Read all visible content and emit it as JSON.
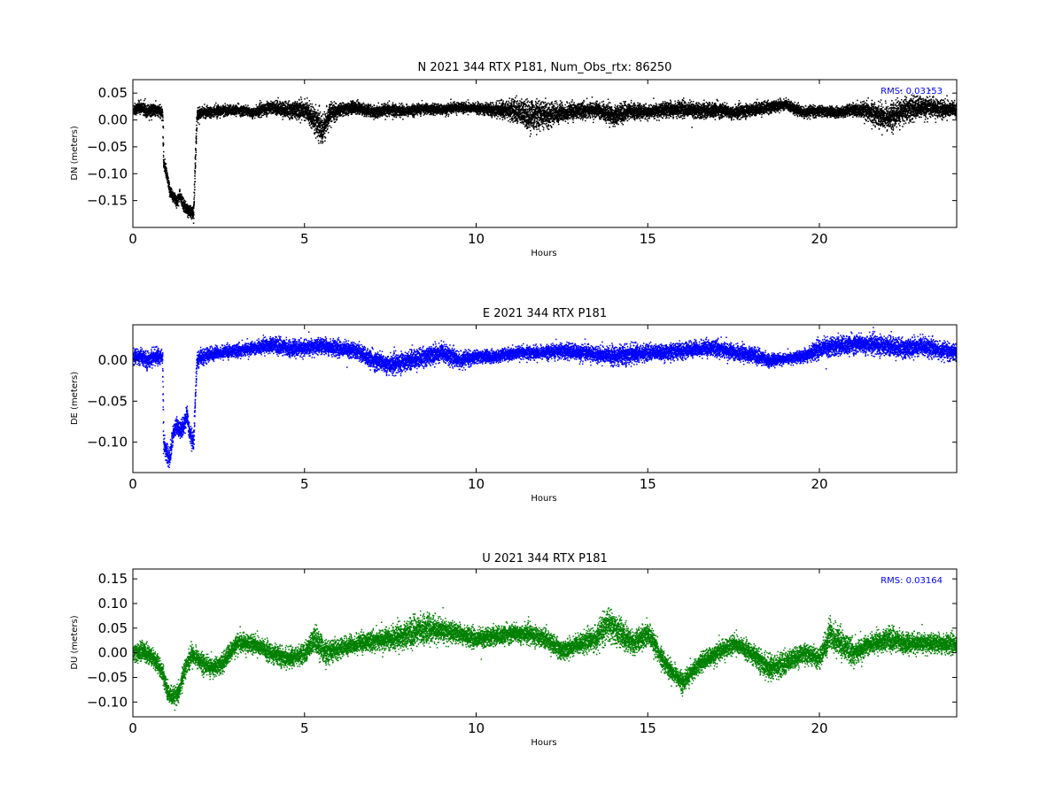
{
  "chart_data": [
    {
      "type": "scatter",
      "title": "N 2021 344 RTX  P181, Num_Obs_rtx: 86250",
      "xlabel": "Hours",
      "ylabel": "DN (meters)",
      "xlim": [
        0,
        24
      ],
      "ylim": [
        -0.2,
        0.075
      ],
      "xticks": [
        0,
        5,
        10,
        15,
        20
      ],
      "xtick_labels": [
        "0",
        "5",
        "10",
        "15",
        "20"
      ],
      "yticks": [
        -0.15,
        -0.1,
        -0.05,
        0.0,
        0.05
      ],
      "ytick_labels": [
        "−0.15",
        "−0.10",
        "−0.05",
        "0.00",
        "0.05"
      ],
      "grid": false,
      "color": "#000000",
      "annotation": "RMS:  0.03153",
      "annotation_color": "#0000ff",
      "series": [
        {
          "x": [
            0,
            0.2,
            0.4,
            0.6,
            0.85,
            0.88,
            0.95,
            1.05,
            1.15,
            1.25,
            1.35,
            1.45,
            1.55,
            1.65,
            1.75,
            1.85,
            2.0,
            2.5,
            3.0,
            3.5,
            4.0,
            4.5,
            5.0,
            5.3,
            5.5,
            5.7,
            6.0,
            6.5,
            7.0,
            7.5,
            8.0,
            8.5,
            9.0,
            9.5,
            10.0,
            10.5,
            11.0,
            11.5,
            12.0,
            12.5,
            13.0,
            13.5,
            14.0,
            14.5,
            15.0,
            15.5,
            16.0,
            16.5,
            17.0,
            17.5,
            18.0,
            18.5,
            19.0,
            19.5,
            20.0,
            20.5,
            21.0,
            21.5,
            22.0,
            22.5,
            23.0,
            23.5,
            24.0
          ],
          "y": [
            0.02,
            0.025,
            0.018,
            0.02,
            0.015,
            -0.08,
            -0.095,
            -0.13,
            -0.14,
            -0.15,
            -0.14,
            -0.155,
            -0.165,
            -0.17,
            -0.175,
            0.01,
            0.015,
            0.018,
            0.02,
            0.015,
            0.025,
            0.02,
            0.02,
            0.0,
            -0.02,
            0.01,
            0.02,
            0.025,
            0.015,
            0.02,
            0.018,
            0.022,
            0.02,
            0.025,
            0.022,
            0.02,
            0.02,
            0.01,
            0.01,
            0.015,
            0.018,
            0.02,
            0.01,
            0.018,
            0.015,
            0.02,
            0.022,
            0.018,
            0.02,
            0.015,
            0.02,
            0.025,
            0.03,
            0.015,
            0.018,
            0.015,
            0.02,
            0.015,
            0.005,
            0.02,
            0.025,
            0.022,
            0.02
          ],
          "spread": [
            0.012,
            0.012,
            0.012,
            0.012,
            0.012,
            0.012,
            0.012,
            0.012,
            0.012,
            0.012,
            0.012,
            0.012,
            0.012,
            0.012,
            0.012,
            0.012,
            0.01,
            0.01,
            0.01,
            0.01,
            0.012,
            0.015,
            0.02,
            0.025,
            0.03,
            0.02,
            0.012,
            0.012,
            0.012,
            0.012,
            0.01,
            0.01,
            0.01,
            0.01,
            0.01,
            0.012,
            0.02,
            0.03,
            0.025,
            0.018,
            0.015,
            0.015,
            0.02,
            0.015,
            0.012,
            0.015,
            0.015,
            0.015,
            0.015,
            0.012,
            0.012,
            0.012,
            0.01,
            0.01,
            0.01,
            0.01,
            0.012,
            0.02,
            0.025,
            0.025,
            0.02,
            0.018,
            0.015
          ]
        }
      ]
    },
    {
      "type": "scatter",
      "title": "E 2021 344 RTX  P181",
      "xlabel": "Hours",
      "ylabel": "DE (meters)",
      "xlim": [
        0,
        24
      ],
      "ylim": [
        -0.137,
        0.043
      ],
      "xticks": [
        0,
        5,
        10,
        15,
        20
      ],
      "xtick_labels": [
        "0",
        "5",
        "10",
        "15",
        "20"
      ],
      "yticks": [
        -0.1,
        -0.05,
        0.0
      ],
      "ytick_labels": [
        "−0.10",
        "−0.05",
        "0.00"
      ],
      "grid": false,
      "color": "#0000ff",
      "annotation": "",
      "annotation_color": "#0000ff",
      "series": [
        {
          "x": [
            0,
            0.2,
            0.4,
            0.6,
            0.85,
            0.88,
            0.95,
            1.05,
            1.15,
            1.25,
            1.35,
            1.45,
            1.55,
            1.65,
            1.75,
            1.85,
            2.0,
            2.5,
            3.0,
            3.5,
            4.0,
            4.5,
            5.0,
            5.5,
            6.0,
            6.5,
            7.0,
            7.5,
            8.0,
            8.5,
            9.0,
            9.5,
            10.0,
            10.5,
            11.0,
            11.5,
            12.0,
            12.5,
            13.0,
            13.5,
            14.0,
            14.5,
            15.0,
            15.5,
            16.0,
            16.5,
            17.0,
            17.5,
            18.0,
            18.5,
            19.0,
            19.5,
            20.0,
            20.5,
            21.0,
            21.5,
            22.0,
            22.5,
            23.0,
            23.5,
            24.0
          ],
          "y": [
            0.005,
            0.005,
            0.0,
            0.005,
            0.005,
            -0.1,
            -0.11,
            -0.12,
            -0.09,
            -0.08,
            -0.085,
            -0.08,
            -0.065,
            -0.09,
            -0.1,
            0.0,
            0.005,
            0.01,
            0.012,
            0.015,
            0.02,
            0.015,
            0.015,
            0.018,
            0.015,
            0.012,
            0.0,
            -0.005,
            0.0,
            0.005,
            0.01,
            0.0,
            0.005,
            0.005,
            0.008,
            0.01,
            0.01,
            0.012,
            0.01,
            0.008,
            0.005,
            0.008,
            0.01,
            0.01,
            0.012,
            0.015,
            0.015,
            0.01,
            0.008,
            0.0,
            0.002,
            0.005,
            0.015,
            0.018,
            0.02,
            0.02,
            0.018,
            0.015,
            0.018,
            0.012,
            0.01
          ],
          "spread": [
            0.01,
            0.01,
            0.01,
            0.01,
            0.01,
            0.012,
            0.012,
            0.012,
            0.012,
            0.012,
            0.012,
            0.012,
            0.012,
            0.012,
            0.012,
            0.01,
            0.01,
            0.008,
            0.008,
            0.008,
            0.01,
            0.01,
            0.01,
            0.01,
            0.01,
            0.01,
            0.012,
            0.012,
            0.012,
            0.012,
            0.012,
            0.01,
            0.008,
            0.008,
            0.008,
            0.008,
            0.008,
            0.01,
            0.01,
            0.01,
            0.012,
            0.012,
            0.01,
            0.01,
            0.01,
            0.01,
            0.01,
            0.01,
            0.01,
            0.008,
            0.006,
            0.008,
            0.012,
            0.012,
            0.012,
            0.012,
            0.012,
            0.012,
            0.012,
            0.01,
            0.01
          ]
        }
      ]
    },
    {
      "type": "scatter",
      "title": "U 2021 344 RTX  P181",
      "xlabel": "Hours",
      "ylabel": "DU (meters)",
      "xlim": [
        0,
        24
      ],
      "ylim": [
        -0.13,
        0.17
      ],
      "xticks": [
        0,
        5,
        10,
        15,
        20
      ],
      "xtick_labels": [
        "0",
        "5",
        "10",
        "15",
        "20"
      ],
      "yticks": [
        -0.1,
        -0.05,
        0.0,
        0.05,
        0.1,
        0.15
      ],
      "ytick_labels": [
        "−0.10",
        "−0.05",
        "0.00",
        "0.05",
        "0.10",
        "0.15"
      ],
      "grid": false,
      "color": "#008000",
      "annotation": "RMS:  0.03164",
      "annotation_color": "#0000ff",
      "series": [
        {
          "x": [
            0,
            0.3,
            0.6,
            0.85,
            1.0,
            1.15,
            1.3,
            1.5,
            1.7,
            2.0,
            2.3,
            2.6,
            3.0,
            3.5,
            4.0,
            4.5,
            5.0,
            5.3,
            5.6,
            6.0,
            6.5,
            7.0,
            7.5,
            8.0,
            8.5,
            9.0,
            9.5,
            10.0,
            10.5,
            11.0,
            11.5,
            12.0,
            12.5,
            13.0,
            13.5,
            13.8,
            14.2,
            14.6,
            15.0,
            15.3,
            15.6,
            16.0,
            16.5,
            17.0,
            17.5,
            18.0,
            18.5,
            19.0,
            19.5,
            20.0,
            20.3,
            20.6,
            21.0,
            21.5,
            22.0,
            22.5,
            23.0,
            23.5,
            24.0
          ],
          "y": [
            0.0,
            0.005,
            -0.01,
            -0.04,
            -0.08,
            -0.09,
            -0.085,
            -0.03,
            0.0,
            -0.02,
            -0.03,
            -0.02,
            0.02,
            0.02,
            0.0,
            -0.01,
            0.0,
            0.03,
            0.0,
            0.01,
            0.02,
            0.025,
            0.03,
            0.04,
            0.05,
            0.045,
            0.04,
            0.03,
            0.035,
            0.04,
            0.04,
            0.03,
            0.005,
            0.02,
            0.03,
            0.06,
            0.04,
            0.02,
            0.04,
            0.0,
            -0.03,
            -0.06,
            -0.02,
            0.0,
            0.02,
            0.0,
            -0.03,
            -0.02,
            0.0,
            -0.01,
            0.04,
            0.02,
            0.0,
            0.02,
            0.03,
            0.02,
            0.02,
            0.02,
            0.02
          ],
          "spread": [
            0.02,
            0.02,
            0.02,
            0.02,
            0.02,
            0.02,
            0.02,
            0.02,
            0.02,
            0.02,
            0.02,
            0.02,
            0.02,
            0.02,
            0.02,
            0.02,
            0.02,
            0.03,
            0.025,
            0.02,
            0.02,
            0.02,
            0.025,
            0.03,
            0.03,
            0.025,
            0.02,
            0.02,
            0.02,
            0.02,
            0.02,
            0.02,
            0.02,
            0.02,
            0.025,
            0.035,
            0.03,
            0.025,
            0.025,
            0.02,
            0.02,
            0.02,
            0.02,
            0.02,
            0.02,
            0.02,
            0.025,
            0.025,
            0.02,
            0.02,
            0.035,
            0.03,
            0.025,
            0.02,
            0.025,
            0.02,
            0.02,
            0.02,
            0.02
          ]
        }
      ]
    }
  ]
}
